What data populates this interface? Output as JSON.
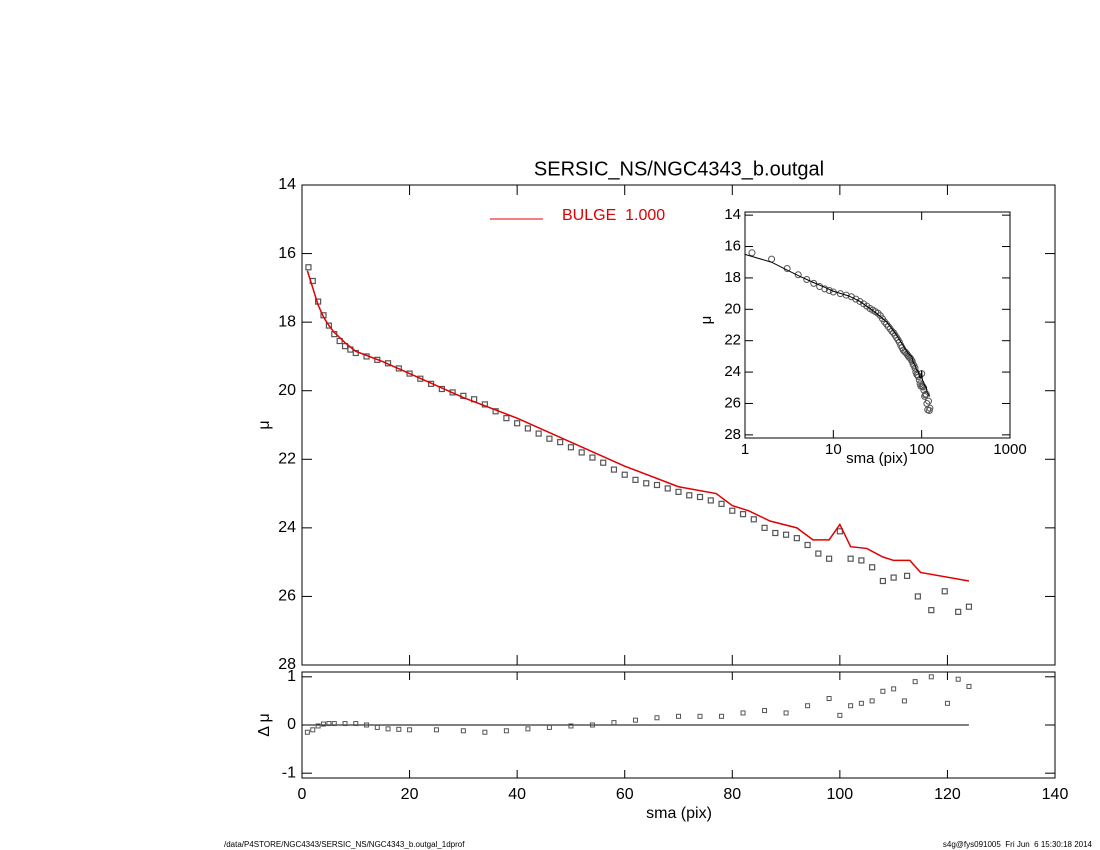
{
  "chart_data": {
    "type": "scatter",
    "title": "SERSIC_NS/NGC4343_b.outgal",
    "xlabel": "sma (pix)",
    "ylabel": "μ",
    "xlim": [
      0,
      140
    ],
    "ylim": [
      28,
      14
    ],
    "xticks": [
      0,
      20,
      40,
      60,
      80,
      100,
      120,
      140
    ],
    "yticks": [
      14,
      16,
      18,
      20,
      22,
      24,
      26,
      28
    ],
    "color": "#555555",
    "x": [
      1.2,
      2,
      3,
      4,
      5,
      6,
      7,
      8,
      9,
      10,
      12,
      14,
      16,
      18,
      20,
      22,
      24,
      26,
      28,
      30,
      32,
      34,
      36,
      38,
      40,
      42,
      44,
      46,
      48,
      50,
      52,
      54,
      56,
      58,
      60,
      62,
      64,
      66,
      68,
      70,
      72,
      74,
      76,
      78,
      80,
      82,
      84,
      86,
      88,
      90,
      92,
      94,
      96,
      98,
      100,
      102,
      104,
      106,
      108,
      110,
      112.5,
      114.5,
      117,
      119.5,
      122,
      124
    ],
    "values": [
      16.4,
      16.8,
      17.4,
      17.8,
      18.1,
      18.35,
      18.55,
      18.7,
      18.8,
      18.9,
      19.0,
      19.1,
      19.2,
      19.35,
      19.5,
      19.65,
      19.8,
      19.95,
      20.05,
      20.15,
      20.25,
      20.4,
      20.6,
      20.8,
      20.95,
      21.1,
      21.25,
      21.4,
      21.5,
      21.65,
      21.8,
      21.95,
      22.1,
      22.3,
      22.45,
      22.6,
      22.7,
      22.75,
      22.85,
      22.95,
      23.05,
      23.1,
      23.2,
      23.3,
      23.5,
      23.6,
      23.75,
      24.0,
      24.15,
      24.2,
      24.3,
      24.5,
      24.75,
      24.9,
      24.1,
      24.9,
      24.95,
      25.15,
      25.55,
      25.45,
      25.4,
      26.0,
      26.4,
      25.85,
      26.45,
      26.3
    ],
    "series": [
      {
        "name": "BULGE  1.000",
        "color": "#e00000",
        "x": [
          1,
          2,
          3,
          4,
          5,
          6,
          8,
          10,
          15,
          20,
          30,
          40,
          50,
          60,
          70,
          77,
          80,
          83,
          87,
          92,
          95,
          98,
          100,
          102,
          105,
          108,
          110,
          113,
          115,
          124
        ],
        "values": [
          16.5,
          17.0,
          17.5,
          17.85,
          18.1,
          18.3,
          18.6,
          18.85,
          19.15,
          19.5,
          20.2,
          20.8,
          21.5,
          22.2,
          22.8,
          23.0,
          23.35,
          23.5,
          23.8,
          24.0,
          24.35,
          24.35,
          23.9,
          24.55,
          24.6,
          24.85,
          24.95,
          24.95,
          25.3,
          25.55
        ]
      }
    ],
    "residual": {
      "ylabel": "Δ μ",
      "ylim": [
        -1.1,
        1.1
      ],
      "yticks": [
        -1,
        0,
        1
      ],
      "x": [
        1,
        2,
        3,
        4,
        5,
        6,
        8,
        10,
        12,
        14,
        16,
        18,
        20,
        25,
        30,
        34,
        38,
        42,
        46,
        50,
        54,
        58,
        62,
        66,
        70,
        74,
        78,
        82,
        86,
        90,
        94,
        98,
        100,
        102,
        104,
        106,
        108,
        110,
        112,
        114,
        117,
        120,
        122,
        124
      ],
      "values": [
        -0.15,
        -0.1,
        -0.02,
        0.02,
        0.03,
        0.03,
        0.03,
        0.03,
        0.0,
        -0.05,
        -0.08,
        -0.09,
        -0.1,
        -0.1,
        -0.12,
        -0.15,
        -0.12,
        -0.08,
        -0.05,
        -0.02,
        0.0,
        0.05,
        0.1,
        0.15,
        0.18,
        0.18,
        0.18,
        0.25,
        0.3,
        0.25,
        0.4,
        0.55,
        0.2,
        0.4,
        0.45,
        0.5,
        0.7,
        0.75,
        0.5,
        0.9,
        1.0,
        0.45,
        0.95,
        0.8
      ]
    },
    "inset": {
      "xlabel": "sma (pix)",
      "ylabel": "μ",
      "xscale": "log",
      "xlim": [
        1,
        1000
      ],
      "ylim": [
        28.2,
        13.8
      ],
      "xticks": [
        1,
        10,
        100,
        1000
      ],
      "yticks": [
        14,
        16,
        18,
        20,
        22,
        24,
        26,
        28
      ]
    }
  },
  "footer": {
    "left": "/data/P4STORE/NGC4343/SERSIC_NS/NGC4343_b.outgal_1dprof",
    "right": "s4g@fys091005  Fri Jun  6 15:30:18 2014"
  }
}
